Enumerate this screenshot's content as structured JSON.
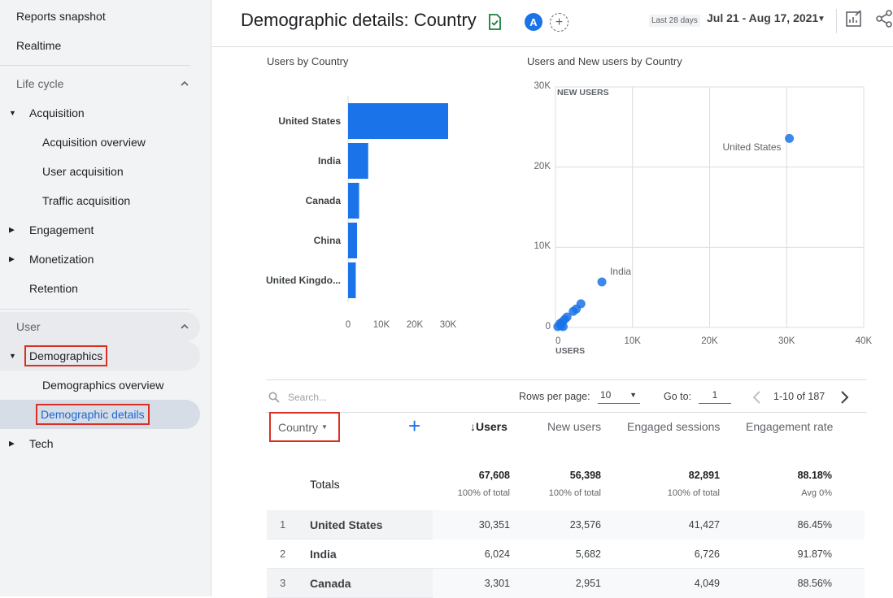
{
  "sidebar": {
    "reports_snapshot": "Reports snapshot",
    "realtime": "Realtime",
    "lifecycle": "Life cycle",
    "acquisition": "Acquisition",
    "acquisition_overview": "Acquisition overview",
    "user_acquisition": "User acquisition",
    "traffic_acquisition": "Traffic acquisition",
    "engagement": "Engagement",
    "monetization": "Monetization",
    "retention": "Retention",
    "user": "User",
    "demographics": "Demographics",
    "demographics_overview": "Demographics overview",
    "demographic_details": "Demographic details",
    "tech": "Tech"
  },
  "header": {
    "title": "Demographic details: Country",
    "avatar": "A",
    "date_label": "Last 28 days",
    "date_range": "Jul 21 - Aug 17, 2021"
  },
  "colors": {
    "accent": "#1a73e8",
    "highlight": "#d93025"
  },
  "chart_data": [
    {
      "type": "bar",
      "title": "Users by Country",
      "orientation": "horizontal",
      "categories": [
        "United States",
        "India",
        "Canada",
        "China",
        "United Kingdo..."
      ],
      "values": [
        30351,
        6024,
        3301,
        2700,
        2300
      ],
      "xlim": [
        0,
        30000
      ],
      "xticks": [
        "0",
        "10K",
        "20K",
        "30K"
      ]
    },
    {
      "type": "scatter",
      "title": "Users and New users by Country",
      "xlabel": "USERS",
      "ylabel": "NEW USERS",
      "xlim": [
        0,
        40000
      ],
      "ylim": [
        0,
        30000
      ],
      "xticks": [
        "0",
        "10K",
        "20K",
        "30K",
        "40K"
      ],
      "yticks": [
        "0",
        "10K",
        "20K",
        "30K"
      ],
      "grid": true,
      "points": [
        {
          "label": "United States",
          "x": 30351,
          "y": 23576
        },
        {
          "label": "India",
          "x": 6024,
          "y": 5682
        },
        {
          "label": "",
          "x": 3301,
          "y": 2951
        },
        {
          "label": "",
          "x": 2700,
          "y": 2300
        },
        {
          "label": "",
          "x": 2300,
          "y": 2000
        },
        {
          "label": "",
          "x": 1500,
          "y": 1300
        },
        {
          "label": "",
          "x": 1200,
          "y": 1000
        },
        {
          "label": "",
          "x": 900,
          "y": 700
        },
        {
          "label": "",
          "x": 600,
          "y": 500
        },
        {
          "label": "",
          "x": 700,
          "y": 200
        },
        {
          "label": "",
          "x": 300,
          "y": 100
        },
        {
          "label": "",
          "x": 1000,
          "y": 100
        }
      ]
    }
  ],
  "table": {
    "search_placeholder": "Search...",
    "rows_per_page_label": "Rows per page:",
    "rows_per_page": "10",
    "goto_label": "Go to:",
    "goto_value": "1",
    "pagination": "1-10 of 187",
    "dimension": "Country",
    "columns": [
      "Users",
      "New users",
      "Engaged sessions",
      "Engagement rate"
    ],
    "totals": {
      "label": "Totals",
      "values": [
        "67,608",
        "56,398",
        "82,891",
        "88.18%"
      ],
      "subs": [
        "100% of total",
        "100% of total",
        "100% of total",
        "Avg 0%"
      ]
    },
    "rows": [
      {
        "idx": "1",
        "name": "United States",
        "values": [
          "30,351",
          "23,576",
          "41,427",
          "86.45%"
        ]
      },
      {
        "idx": "2",
        "name": "India",
        "values": [
          "6,024",
          "5,682",
          "6,726",
          "91.87%"
        ]
      },
      {
        "idx": "3",
        "name": "Canada",
        "values": [
          "3,301",
          "2,951",
          "4,049",
          "88.56%"
        ]
      }
    ]
  }
}
